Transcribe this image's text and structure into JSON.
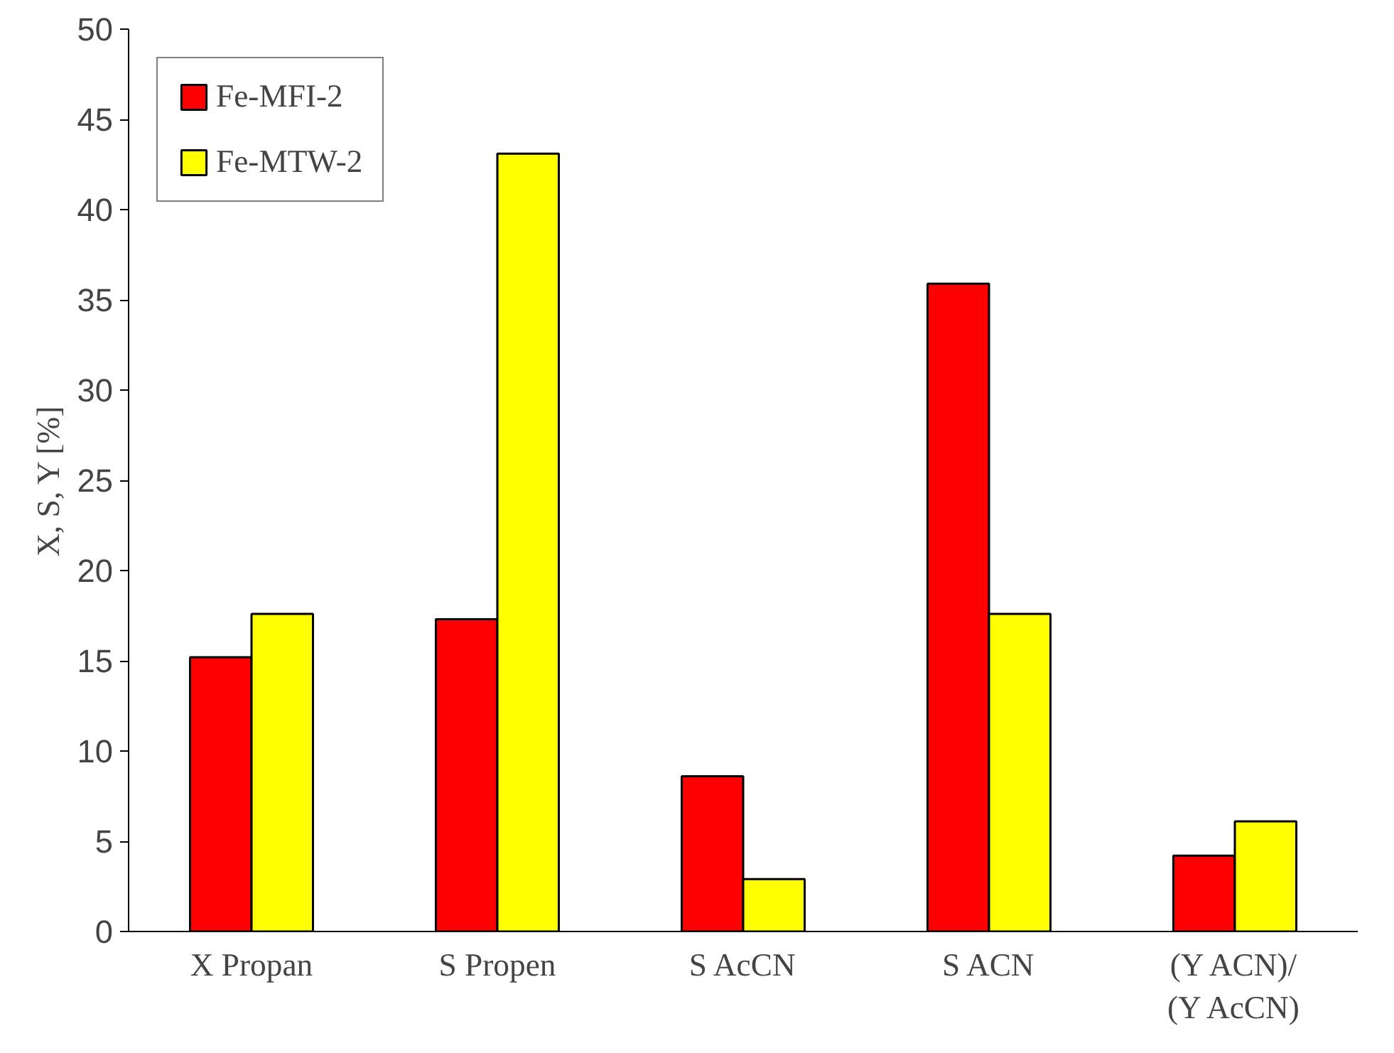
{
  "chart_data": {
    "type": "bar",
    "ylabel": "X, S, Y [%]",
    "categories": [
      "X Propan",
      "S Propen",
      "S AcCN",
      "S ACN",
      "(Y ACN)/\n(Y AcCN)"
    ],
    "series": [
      {
        "name": "Fe-MFI-2",
        "color": "#ff0000",
        "values": [
          15.2,
          17.3,
          8.6,
          35.9,
          4.2
        ]
      },
      {
        "name": "Fe-MTW-2",
        "color": "#ffff00",
        "values": [
          17.6,
          43.1,
          2.9,
          17.6,
          6.1
        ]
      }
    ],
    "ylim": [
      0,
      50
    ],
    "yticks": [
      0,
      5,
      10,
      15,
      20,
      25,
      30,
      35,
      40,
      45,
      50
    ],
    "grid": false,
    "legend": "top left"
  }
}
